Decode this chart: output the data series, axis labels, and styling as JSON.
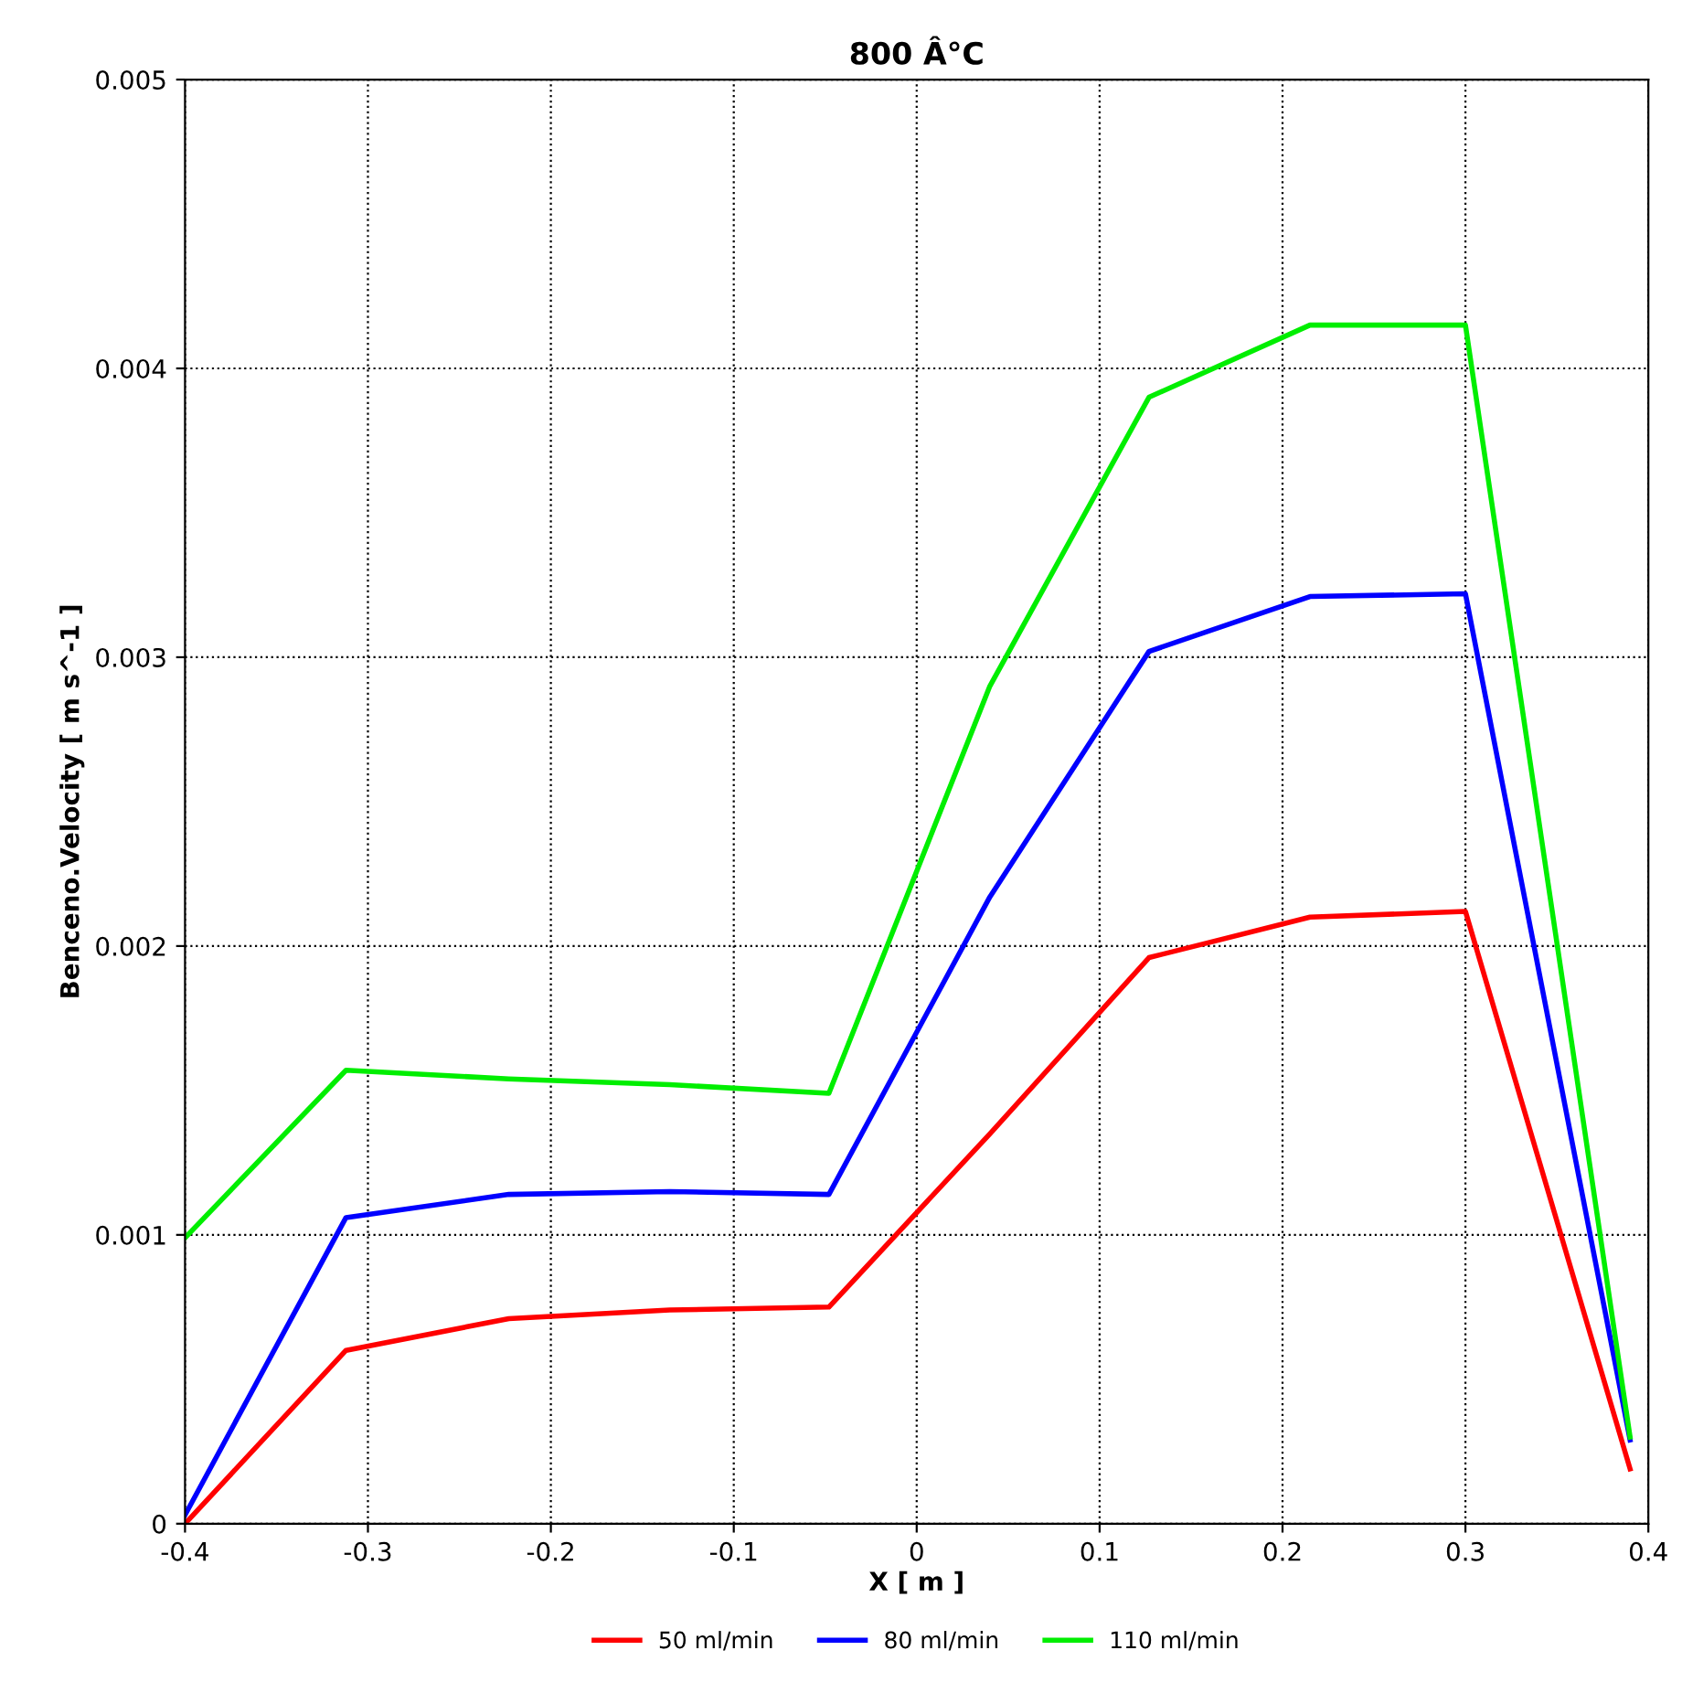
{
  "chart_data": {
    "type": "line",
    "title": "800 Â°C",
    "xlabel": "X [ m ]",
    "ylabel": "Benceno.Velocity [ m s^-1 ]",
    "x": [
      -0.4,
      -0.312,
      -0.223,
      -0.135,
      -0.048,
      0.04,
      0.127,
      0.215,
      0.3,
      0.39
    ],
    "series": [
      {
        "name": "50 ml/min",
        "color": "#ff0000",
        "values": [
          0.0,
          0.0006,
          0.00071,
          0.00074,
          0.00075,
          0.00135,
          0.00196,
          0.0021,
          0.00212,
          0.00019
        ]
      },
      {
        "name": "80 ml/min",
        "color": "#0000ff",
        "values": [
          3e-05,
          0.00106,
          0.00114,
          0.00115,
          0.00114,
          0.00217,
          0.00302,
          0.00321,
          0.00322,
          0.00029
        ]
      },
      {
        "name": "110 ml/min",
        "color": "#00ee00",
        "values": [
          0.00099,
          0.00157,
          0.00154,
          0.00152,
          0.00149,
          0.0029,
          0.0039,
          0.00415,
          0.00415,
          0.0003
        ]
      }
    ],
    "xlim": [
      -0.4,
      0.4
    ],
    "xticks": [
      -0.4,
      -0.3,
      -0.2,
      -0.1,
      0,
      0.1,
      0.2,
      0.3,
      0.4
    ],
    "ylim": [
      0,
      0.005
    ],
    "yticks": [
      0,
      0.001,
      0.002,
      0.003,
      0.004,
      0.005
    ],
    "grid": true,
    "legend": "bottom",
    "marker": "none",
    "line_style": "solid"
  }
}
